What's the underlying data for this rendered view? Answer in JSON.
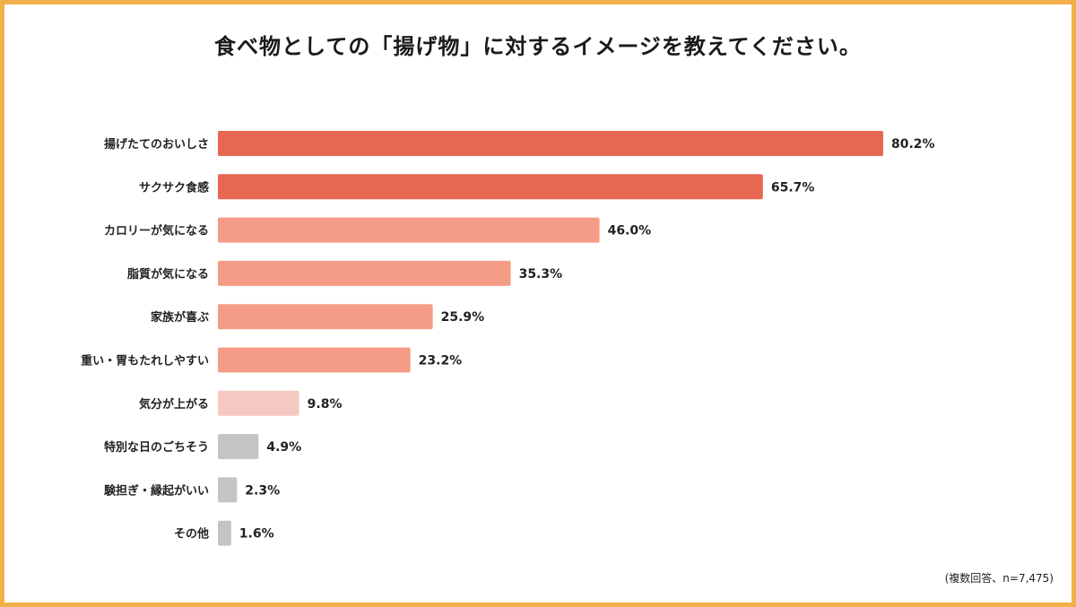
{
  "title": "食べ物としての「揚げ物」に対するイメージを教えてください。",
  "footnote": "(複数回答、n=7,475)",
  "chart_data": {
    "type": "bar",
    "orientation": "horizontal",
    "title": "食べ物としての「揚げ物」に対するイメージを教えてください。",
    "xlabel": "",
    "ylabel": "",
    "unit": "%",
    "xlim": [
      0,
      82
    ],
    "categories": [
      "揚げたてのおいしさ",
      "サクサク食感",
      "カロリーが気になる",
      "脂質が気になる",
      "家族が喜ぶ",
      "重い・胃もたれしやすい",
      "気分が上がる",
      "特別な日のごちそう",
      "験担ぎ・縁起がいい",
      "その他"
    ],
    "values": [
      80.2,
      65.7,
      46.0,
      35.3,
      25.9,
      23.2,
      9.8,
      4.9,
      2.3,
      1.6
    ],
    "value_labels": [
      "80.2%",
      "65.7%",
      "46.0%",
      "35.3%",
      "25.9%",
      "23.2%",
      "9.8%",
      "4.9%",
      "2.3%",
      "1.6%"
    ],
    "colors": [
      "#e86752",
      "#e86752",
      "#f59c86",
      "#f59c86",
      "#f59c86",
      "#f59c86",
      "#f5c9c1",
      "#c4c4c4",
      "#c4c4c4",
      "#c4c4c4"
    ],
    "grid": false
  }
}
